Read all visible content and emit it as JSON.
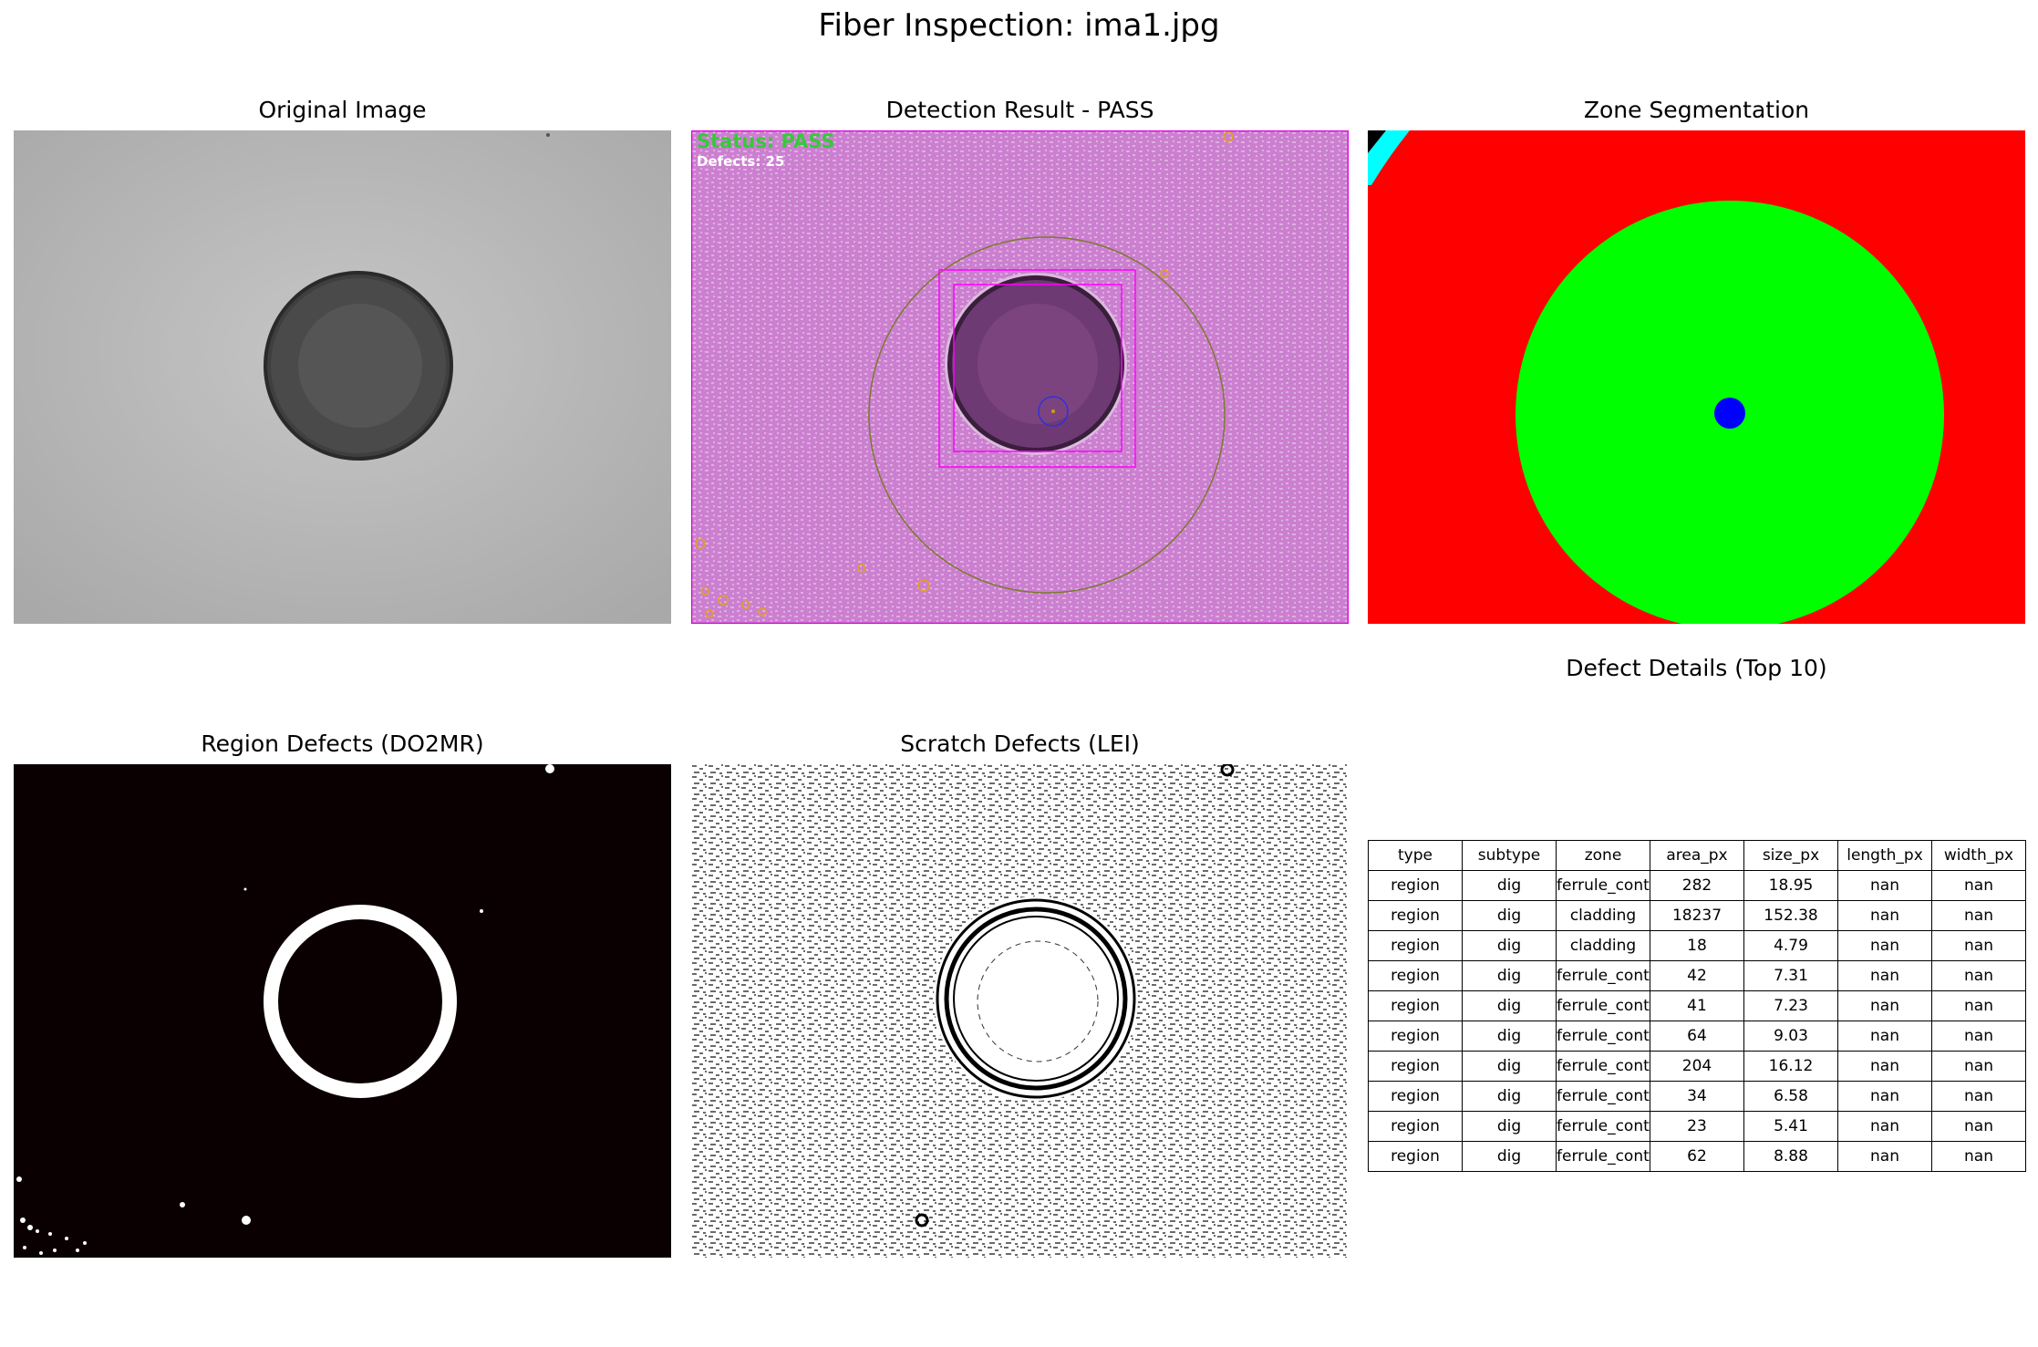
{
  "figure": {
    "title": "Fiber Inspection: ima1.jpg"
  },
  "panels": {
    "original": "Original Image",
    "detection": "Detection Result - PASS",
    "zones": "Zone Segmentation",
    "region": "Region Defects (DO2MR)",
    "scratch": "Scratch Defects (LEI)",
    "table": "Defect Details (Top 10)"
  },
  "detection_overlay": {
    "status": "Status: PASS",
    "defects": "Defects: 25",
    "status_color": "#35c93a"
  },
  "zone_colors": {
    "core": "#0000ff",
    "cladding": "#00ff00",
    "ferrule_contact": "#ff0000",
    "adhesive": "#00ffff"
  },
  "table": {
    "columns": [
      "type",
      "subtype",
      "zone",
      "area_px",
      "size_px",
      "length_px",
      "width_px"
    ],
    "rows": [
      [
        "region",
        "dig",
        "ferrule_contact",
        "282",
        "18.95",
        "nan",
        "nan"
      ],
      [
        "region",
        "dig",
        "cladding",
        "18237",
        "152.38",
        "nan",
        "nan"
      ],
      [
        "region",
        "dig",
        "cladding",
        "18",
        "4.79",
        "nan",
        "nan"
      ],
      [
        "region",
        "dig",
        "ferrule_contact",
        "42",
        "7.31",
        "nan",
        "nan"
      ],
      [
        "region",
        "dig",
        "ferrule_contact",
        "41",
        "7.23",
        "nan",
        "nan"
      ],
      [
        "region",
        "dig",
        "ferrule_contact",
        "64",
        "9.03",
        "nan",
        "nan"
      ],
      [
        "region",
        "dig",
        "ferrule_contact",
        "204",
        "16.12",
        "nan",
        "nan"
      ],
      [
        "region",
        "dig",
        "ferrule_contact",
        "34",
        "6.58",
        "nan",
        "nan"
      ],
      [
        "region",
        "dig",
        "ferrule_contact",
        "23",
        "5.41",
        "nan",
        "nan"
      ],
      [
        "region",
        "dig",
        "ferrule_contact",
        "62",
        "8.88",
        "nan",
        "nan"
      ]
    ]
  }
}
